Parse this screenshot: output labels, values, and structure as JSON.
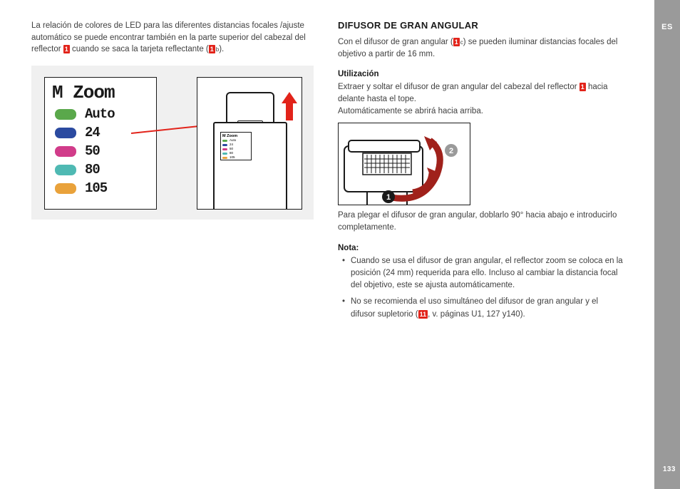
{
  "lang_tab": "ES",
  "page_number": "133",
  "left": {
    "intro": "La relación de colores de LED para las diferentes distancias focales /ajuste automático se puede encontrar también en la parte superior del cabezal del reflector ",
    "intro_ref": "1",
    "intro_after": " cuando se saca la tarjeta reflectante (",
    "intro_ref2": "1",
    "intro_ref2_sup": "b",
    "intro_close": ").",
    "zoom": {
      "title": "M Zoom",
      "rows": [
        {
          "color": "#5aa84b",
          "label": "Auto"
        },
        {
          "color": "#2b4aa0",
          "label": "24"
        },
        {
          "color": "#d13c8a",
          "label": "50"
        },
        {
          "color": "#4fb9b3",
          "label": "80"
        },
        {
          "color": "#e9a23b",
          "label": "105"
        }
      ]
    },
    "arrow_color": "#e2231a",
    "pointer_color": "#e2231a"
  },
  "right": {
    "heading": "DIFUSOR DE GRAN ANGULAR",
    "p1_a": "Con el difusor de gran angular (",
    "p1_ref": "1",
    "p1_ref_sup": "c",
    "p1_b": ") se pueden iluminar distancias focales del objetivo a partir de 16 mm.",
    "util_h": "Utilización",
    "util_p1a": "Extraer y soltar el difusor de gran angular del cabezal del reflector ",
    "util_ref": "1",
    "util_p1b": " hacia delante hasta el tope.",
    "util_p2": "Automáticamente se abrirá hacia arriba.",
    "after_diag": "Para plegar el difusor de gran angular, doblarlo 90° hacia abajo e introducirlo completamente.",
    "nota_h": "Nota:",
    "bullets": [
      "Cuando se usa el difusor de gran angular, el reflector zoom se coloca en la posición (24 mm) requerida para ello. Incluso al cambiar la distancia focal del objetivo, este se ajusta automáticamente.",
      "No se recomienda el uso simultáneo del difusor de gran angular y el difusor supletorio ("
    ],
    "bullet2_ref": "11",
    "bullet2_tail": ", v. páginas U1, 127 y140).",
    "circle_labels": {
      "one": "1",
      "two": "2"
    },
    "arrow_color": "#a0211b"
  }
}
